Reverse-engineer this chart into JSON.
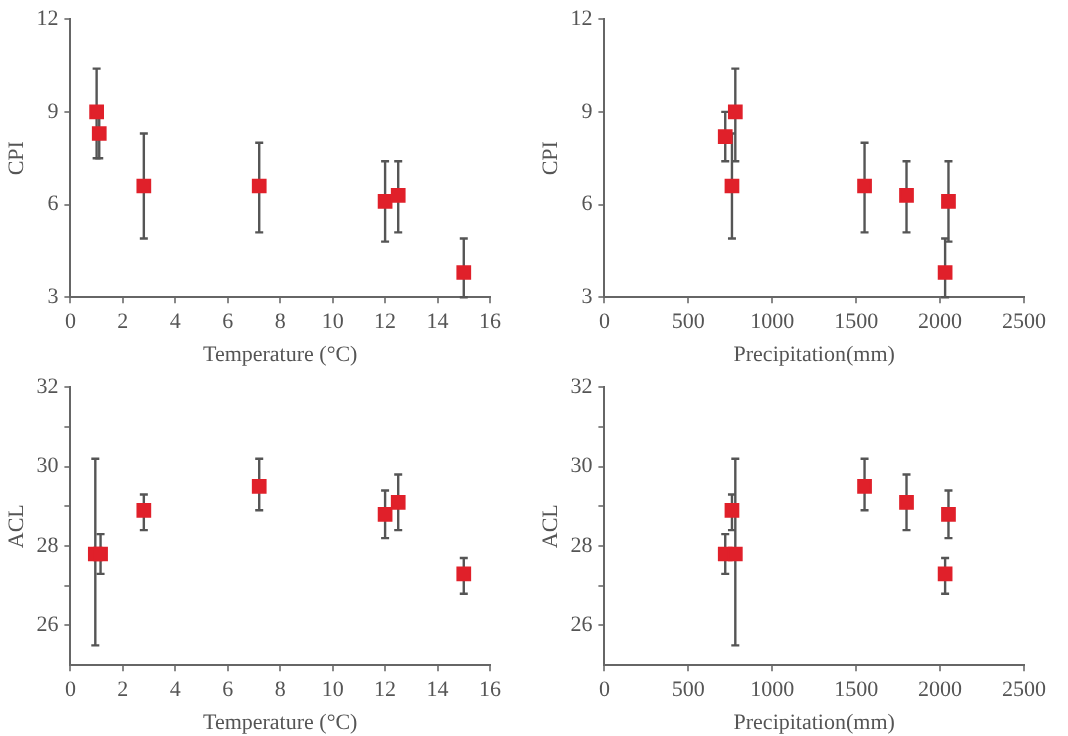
{
  "chart_data": [
    {
      "type": "scatter",
      "xlabel": "Temperature (°C)",
      "ylabel": "CPI",
      "x": [
        1.0,
        1.1,
        2.8,
        7.2,
        12.0,
        12.5,
        15.0
      ],
      "xlim": [
        0,
        16
      ],
      "xticks": [
        0,
        2,
        4,
        6,
        8,
        10,
        12,
        14,
        16
      ],
      "ylim": [
        3,
        12
      ],
      "yticks": [
        3,
        6,
        9,
        12
      ],
      "marker": "square",
      "series": [
        {
          "color": "#e0202a",
          "values": [
            9.0,
            8.3,
            6.6,
            6.6,
            6.1,
            6.3,
            3.8
          ],
          "errors": [
            [
              7.5,
              10.4
            ],
            [
              7.5,
              9.1
            ],
            [
              4.9,
              8.3
            ],
            [
              5.1,
              8.0
            ],
            [
              4.8,
              7.4
            ],
            [
              5.1,
              7.4
            ],
            [
              3.0,
              4.9
            ]
          ]
        }
      ]
    },
    {
      "type": "scatter",
      "xlabel": "Precipitation(mm)",
      "ylabel": "CPI",
      "x": [
        720,
        780,
        760,
        1550,
        1800,
        2050,
        2030
      ],
      "xlim": [
        0,
        2500
      ],
      "xticks": [
        0,
        500,
        1000,
        1500,
        2000,
        2500
      ],
      "ylim": [
        3,
        12
      ],
      "yticks": [
        3,
        6,
        9,
        12
      ],
      "marker": "square",
      "series": [
        {
          "color": "#e0202a",
          "values": [
            8.2,
            9.0,
            6.6,
            6.6,
            6.3,
            6.1,
            3.8
          ],
          "errors": [
            [
              7.4,
              9.0
            ],
            [
              7.4,
              10.4
            ],
            [
              4.9,
              8.3
            ],
            [
              5.1,
              8.0
            ],
            [
              5.1,
              7.4
            ],
            [
              4.8,
              7.4
            ],
            [
              3.0,
              4.9
            ]
          ]
        }
      ]
    },
    {
      "type": "scatter",
      "xlabel": "Temperature (°C)",
      "ylabel": "ACL",
      "x": [
        0.95,
        1.15,
        2.8,
        7.2,
        12.0,
        12.5,
        15.0
      ],
      "xlim": [
        0,
        16
      ],
      "xticks": [
        0,
        2,
        4,
        6,
        8,
        10,
        12,
        14,
        16
      ],
      "ylim": [
        25,
        32
      ],
      "yticks": [
        26,
        {
          "value": 27,
          "label": null
        },
        28,
        {
          "value": 29,
          "label": null
        },
        30,
        {
          "value": 31,
          "label": null
        },
        32
      ],
      "marker": "square",
      "series": [
        {
          "color": "#e0202a",
          "values": [
            27.8,
            27.8,
            28.9,
            29.5,
            28.8,
            29.1,
            27.3
          ],
          "errors": [
            [
              25.5,
              30.2
            ],
            [
              27.3,
              28.3
            ],
            [
              28.4,
              29.3
            ],
            [
              28.9,
              30.2
            ],
            [
              28.2,
              29.4
            ],
            [
              28.4,
              29.8
            ],
            [
              26.8,
              27.7
            ]
          ]
        }
      ]
    },
    {
      "type": "scatter",
      "xlabel": "Precipitation(mm)",
      "ylabel": "ACL",
      "x": [
        720,
        780,
        760,
        1550,
        1800,
        2050,
        2030
      ],
      "xlim": [
        0,
        2500
      ],
      "xticks": [
        0,
        500,
        1000,
        1500,
        2000,
        2500
      ],
      "ylim": [
        25,
        32
      ],
      "yticks": [
        26,
        {
          "value": 27,
          "label": null
        },
        28,
        {
          "value": 29,
          "label": null
        },
        30,
        {
          "value": 31,
          "label": null
        },
        32
      ],
      "marker": "square",
      "series": [
        {
          "color": "#e0202a",
          "values": [
            27.8,
            27.8,
            28.9,
            29.5,
            29.1,
            28.8,
            27.3
          ],
          "errors": [
            [
              27.3,
              28.3
            ],
            [
              25.5,
              30.2
            ],
            [
              28.4,
              29.3
            ],
            [
              28.9,
              30.2
            ],
            [
              28.4,
              29.8
            ],
            [
              28.2,
              29.4
            ],
            [
              26.8,
              27.7
            ]
          ]
        }
      ]
    }
  ]
}
